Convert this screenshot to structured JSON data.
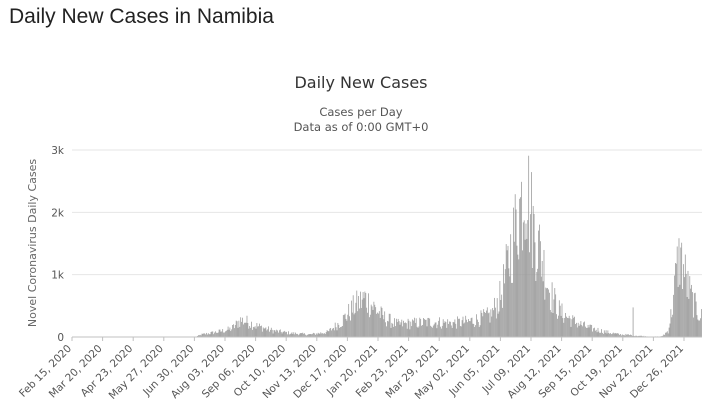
{
  "page": {
    "heading": "Daily New Cases in Namibia"
  },
  "chart_data": {
    "type": "bar",
    "title": "Daily New Cases",
    "subtitle_lines": [
      "Cases per Day",
      "Data as of 0:00 GMT+0"
    ],
    "ylabel": "Novel Coronavirus Daily Cases",
    "xlabel": "",
    "ylim": [
      0,
      3000
    ],
    "y_ticks": [
      {
        "value": 0,
        "label": "0"
      },
      {
        "value": 1000,
        "label": "1k"
      },
      {
        "value": 2000,
        "label": "2k"
      },
      {
        "value": 3000,
        "label": "3k"
      }
    ],
    "x_start": "2020-02-15",
    "x_end": "2022-01-14",
    "x_tick_labels": [
      "Feb 15, 2020",
      "Mar 20, 2020",
      "Apr 23, 2020",
      "May 27, 2020",
      "Jun 30, 2020",
      "Aug 03, 2020",
      "Sep 06, 2020",
      "Oct 10, 2020",
      "Nov 13, 2020",
      "Dec 17, 2020",
      "Jan 20, 2021",
      "Feb 23, 2021",
      "Mar 29, 2021",
      "May 02, 2021",
      "Jun 05, 2021",
      "Jul 09, 2021",
      "Aug 12, 2021",
      "Sep 15, 2021",
      "Oct 19, 2021",
      "Nov 22, 2021",
      "Dec 26, 2021"
    ],
    "grid": true,
    "legend": "none",
    "bar_color": "#999999",
    "series_samples": [
      {
        "x": "2020-02-15",
        "y": 0
      },
      {
        "x": "2020-06-30",
        "y": 0
      },
      {
        "x": "2020-07-08",
        "y": 40
      },
      {
        "x": "2020-07-25",
        "y": 80
      },
      {
        "x": "2020-08-10",
        "y": 130
      },
      {
        "x": "2020-08-20",
        "y": 270
      },
      {
        "x": "2020-08-28",
        "y": 240
      },
      {
        "x": "2020-09-06",
        "y": 180
      },
      {
        "x": "2020-09-25",
        "y": 100
      },
      {
        "x": "2020-10-15",
        "y": 60
      },
      {
        "x": "2020-11-05",
        "y": 40
      },
      {
        "x": "2020-11-25",
        "y": 80
      },
      {
        "x": "2020-12-10",
        "y": 250
      },
      {
        "x": "2020-12-25",
        "y": 500
      },
      {
        "x": "2021-01-05",
        "y": 620
      },
      {
        "x": "2021-01-15",
        "y": 480
      },
      {
        "x": "2021-01-25",
        "y": 320
      },
      {
        "x": "2021-02-10",
        "y": 200
      },
      {
        "x": "2021-03-01",
        "y": 220
      },
      {
        "x": "2021-03-20",
        "y": 240
      },
      {
        "x": "2021-04-10",
        "y": 220
      },
      {
        "x": "2021-04-28",
        "y": 240
      },
      {
        "x": "2021-05-10",
        "y": 280
      },
      {
        "x": "2021-05-25",
        "y": 350
      },
      {
        "x": "2021-06-05",
        "y": 650
      },
      {
        "x": "2021-06-15",
        "y": 1300
      },
      {
        "x": "2021-06-22",
        "y": 1800
      },
      {
        "x": "2021-06-30",
        "y": 2300
      },
      {
        "x": "2021-07-03",
        "y": 2550
      },
      {
        "x": "2021-07-08",
        "y": 2000
      },
      {
        "x": "2021-07-12",
        "y": 1700
      },
      {
        "x": "2021-07-20",
        "y": 1300
      },
      {
        "x": "2021-07-30",
        "y": 700
      },
      {
        "x": "2021-08-10",
        "y": 400
      },
      {
        "x": "2021-08-25",
        "y": 250
      },
      {
        "x": "2021-09-10",
        "y": 150
      },
      {
        "x": "2021-09-30",
        "y": 80
      },
      {
        "x": "2021-10-15",
        "y": 40
      },
      {
        "x": "2021-10-29",
        "y": 30
      },
      {
        "x": "2021-10-30",
        "y": 340
      },
      {
        "x": "2021-10-31",
        "y": 25
      },
      {
        "x": "2021-11-20",
        "y": 5
      },
      {
        "x": "2021-12-01",
        "y": 10
      },
      {
        "x": "2021-12-08",
        "y": 100
      },
      {
        "x": "2021-12-13",
        "y": 500
      },
      {
        "x": "2021-12-17",
        "y": 1050
      },
      {
        "x": "2021-12-21",
        "y": 1300
      },
      {
        "x": "2021-12-25",
        "y": 1100
      },
      {
        "x": "2021-12-30",
        "y": 800
      },
      {
        "x": "2022-01-05",
        "y": 550
      },
      {
        "x": "2022-01-10",
        "y": 400
      },
      {
        "x": "2022-01-14",
        "y": 330
      }
    ]
  }
}
